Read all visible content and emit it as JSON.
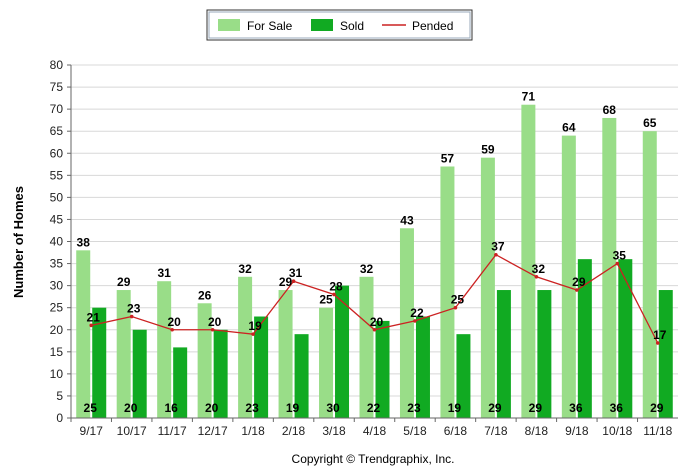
{
  "chart_data": {
    "type": "bar",
    "categories": [
      "9/17",
      "10/17",
      "11/17",
      "12/17",
      "1/18",
      "2/18",
      "3/18",
      "4/18",
      "5/18",
      "6/18",
      "7/18",
      "8/18",
      "9/18",
      "10/18",
      "11/18"
    ],
    "series": [
      {
        "name": "For Sale",
        "type": "bar",
        "color": "#99dd88",
        "values": [
          38,
          29,
          31,
          26,
          32,
          29,
          25,
          32,
          43,
          57,
          59,
          71,
          64,
          68,
          65
        ]
      },
      {
        "name": "Sold",
        "type": "bar",
        "color": "#11aa22",
        "values": [
          25,
          20,
          16,
          20,
          23,
          19,
          30,
          22,
          23,
          19,
          29,
          29,
          36,
          36,
          29
        ]
      },
      {
        "name": "Pended",
        "type": "line",
        "color": "#cc2222",
        "values": [
          21,
          23,
          20,
          20,
          19,
          31,
          28,
          20,
          22,
          25,
          37,
          32,
          29,
          35,
          17
        ]
      }
    ],
    "ylabel": "Number of Homes",
    "ylim": [
      0,
      80
    ],
    "yticks": [
      0,
      5,
      10,
      15,
      20,
      25,
      30,
      35,
      40,
      45,
      50,
      55,
      60,
      65,
      70,
      75,
      80
    ],
    "grid": true,
    "legend": "top-center"
  },
  "footer": {
    "copyright": "Copyright © Trendgraphix, Inc."
  }
}
